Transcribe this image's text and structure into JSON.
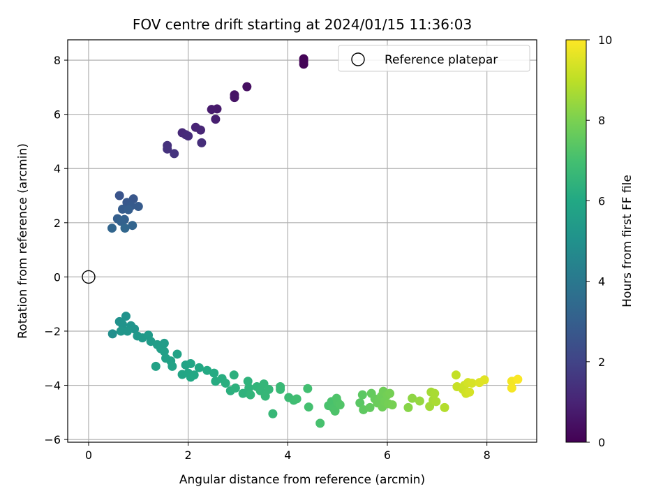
{
  "chart_data": {
    "type": "scatter",
    "title": "FOV centre drift starting at 2024/01/15 11:36:03",
    "xlabel": "Angular distance from reference (arcmin)",
    "ylabel": "Rotation from reference (arcmin)",
    "xlim": [
      -0.42,
      9.0
    ],
    "ylim": [
      -6.1,
      8.75
    ],
    "xticks": [
      0,
      2,
      4,
      6,
      8
    ],
    "yticks": [
      -6,
      -4,
      -2,
      0,
      2,
      4,
      6,
      8
    ],
    "grid": true,
    "legend": {
      "position": "top-right",
      "entries": [
        "Reference platepar"
      ]
    },
    "reference_point": {
      "x": 0,
      "y": 0,
      "marker": "open-circle",
      "label": "Reference platepar"
    },
    "colorbar": {
      "label": "Hours from first FF file",
      "colormap": "viridis",
      "min": 0,
      "max": 10,
      "ticks": [
        0,
        2,
        4,
        6,
        8,
        10
      ]
    },
    "points": [
      {
        "x": 4.32,
        "y": 8.05,
        "c": 0.05
      },
      {
        "x": 4.32,
        "y": 7.95,
        "c": 0.08
      },
      {
        "x": 4.32,
        "y": 7.85,
        "c": 0.1
      },
      {
        "x": 3.18,
        "y": 7.02,
        "c": 0.4
      },
      {
        "x": 2.93,
        "y": 6.72,
        "c": 0.5
      },
      {
        "x": 2.93,
        "y": 6.62,
        "c": 0.55
      },
      {
        "x": 2.58,
        "y": 6.2,
        "c": 0.7
      },
      {
        "x": 2.47,
        "y": 6.18,
        "c": 0.75
      },
      {
        "x": 2.55,
        "y": 5.82,
        "c": 0.85
      },
      {
        "x": 2.15,
        "y": 5.52,
        "c": 1.0
      },
      {
        "x": 2.25,
        "y": 5.42,
        "c": 1.05
      },
      {
        "x": 1.88,
        "y": 5.32,
        "c": 1.15
      },
      {
        "x": 1.95,
        "y": 5.25,
        "c": 1.2
      },
      {
        "x": 2.0,
        "y": 5.2,
        "c": 1.25
      },
      {
        "x": 2.27,
        "y": 4.95,
        "c": 1.3
      },
      {
        "x": 1.58,
        "y": 4.85,
        "c": 1.4
      },
      {
        "x": 1.58,
        "y": 4.72,
        "c": 1.45
      },
      {
        "x": 1.72,
        "y": 4.55,
        "c": 1.5
      },
      {
        "x": 0.62,
        "y": 3.0,
        "c": 2.6
      },
      {
        "x": 0.9,
        "y": 2.88,
        "c": 2.7
      },
      {
        "x": 0.77,
        "y": 2.75,
        "c": 2.75
      },
      {
        "x": 0.85,
        "y": 2.62,
        "c": 2.8
      },
      {
        "x": 1.0,
        "y": 2.6,
        "c": 2.85
      },
      {
        "x": 0.68,
        "y": 2.5,
        "c": 2.9
      },
      {
        "x": 0.8,
        "y": 2.48,
        "c": 2.95
      },
      {
        "x": 0.58,
        "y": 2.15,
        "c": 3.0
      },
      {
        "x": 0.72,
        "y": 2.12,
        "c": 3.05
      },
      {
        "x": 0.65,
        "y": 2.05,
        "c": 3.1
      },
      {
        "x": 0.88,
        "y": 1.9,
        "c": 3.2
      },
      {
        "x": 0.47,
        "y": 1.8,
        "c": 3.25
      },
      {
        "x": 0.73,
        "y": 1.8,
        "c": 3.3
      },
      {
        "x": 0.48,
        "y": -2.1,
        "c": 4.9
      },
      {
        "x": 0.62,
        "y": -1.65,
        "c": 5.0
      },
      {
        "x": 0.75,
        "y": -1.45,
        "c": 5.05
      },
      {
        "x": 0.68,
        "y": -1.75,
        "c": 5.1
      },
      {
        "x": 0.85,
        "y": -1.8,
        "c": 5.12
      },
      {
        "x": 0.92,
        "y": -1.92,
        "c": 5.15
      },
      {
        "x": 0.65,
        "y": -2.0,
        "c": 5.2
      },
      {
        "x": 0.78,
        "y": -2.0,
        "c": 5.22
      },
      {
        "x": 0.98,
        "y": -2.18,
        "c": 5.3
      },
      {
        "x": 1.08,
        "y": -2.25,
        "c": 5.35
      },
      {
        "x": 1.2,
        "y": -2.15,
        "c": 5.4
      },
      {
        "x": 1.25,
        "y": -2.38,
        "c": 5.45
      },
      {
        "x": 1.38,
        "y": -2.5,
        "c": 5.5
      },
      {
        "x": 1.45,
        "y": -2.65,
        "c": 5.55
      },
      {
        "x": 1.52,
        "y": -2.75,
        "c": 5.6
      },
      {
        "x": 1.55,
        "y": -3.0,
        "c": 5.65
      },
      {
        "x": 1.65,
        "y": -3.1,
        "c": 5.7
      },
      {
        "x": 1.68,
        "y": -3.3,
        "c": 5.72
      },
      {
        "x": 1.78,
        "y": -2.85,
        "c": 5.75
      },
      {
        "x": 1.35,
        "y": -3.3,
        "c": 5.7
      },
      {
        "x": 1.52,
        "y": -2.45,
        "c": 5.5
      },
      {
        "x": 1.95,
        "y": -3.25,
        "c": 5.8
      },
      {
        "x": 2.05,
        "y": -3.2,
        "c": 5.85
      },
      {
        "x": 1.88,
        "y": -3.6,
        "c": 5.88
      },
      {
        "x": 2.0,
        "y": -3.55,
        "c": 5.9
      },
      {
        "x": 2.05,
        "y": -3.7,
        "c": 5.95
      },
      {
        "x": 2.12,
        "y": -3.62,
        "c": 6.0
      },
      {
        "x": 2.22,
        "y": -3.35,
        "c": 6.0
      },
      {
        "x": 2.38,
        "y": -3.45,
        "c": 6.05
      },
      {
        "x": 2.52,
        "y": -3.55,
        "c": 6.1
      },
      {
        "x": 2.55,
        "y": -3.85,
        "c": 6.15
      },
      {
        "x": 2.68,
        "y": -3.75,
        "c": 6.2
      },
      {
        "x": 2.75,
        "y": -3.92,
        "c": 6.25
      },
      {
        "x": 2.85,
        "y": -4.2,
        "c": 6.3
      },
      {
        "x": 2.92,
        "y": -3.62,
        "c": 6.3
      },
      {
        "x": 2.95,
        "y": -4.1,
        "c": 6.35
      },
      {
        "x": 3.1,
        "y": -4.3,
        "c": 6.4
      },
      {
        "x": 3.2,
        "y": -3.85,
        "c": 6.42
      },
      {
        "x": 3.22,
        "y": -4.1,
        "c": 6.45
      },
      {
        "x": 3.25,
        "y": -4.35,
        "c": 6.5
      },
      {
        "x": 3.38,
        "y": -4.05,
        "c": 6.5
      },
      {
        "x": 3.45,
        "y": -4.2,
        "c": 6.55
      },
      {
        "x": 3.52,
        "y": -3.95,
        "c": 6.55
      },
      {
        "x": 3.55,
        "y": -4.4,
        "c": 6.6
      },
      {
        "x": 3.62,
        "y": -4.15,
        "c": 6.6
      },
      {
        "x": 3.7,
        "y": -5.05,
        "c": 6.65
      },
      {
        "x": 3.85,
        "y": -4.05,
        "c": 6.7
      },
      {
        "x": 3.85,
        "y": -4.15,
        "c": 6.72
      },
      {
        "x": 4.02,
        "y": -4.45,
        "c": 6.8
      },
      {
        "x": 4.12,
        "y": -4.55,
        "c": 6.85
      },
      {
        "x": 4.18,
        "y": -4.5,
        "c": 6.9
      },
      {
        "x": 4.4,
        "y": -4.12,
        "c": 6.95
      },
      {
        "x": 4.42,
        "y": -4.8,
        "c": 7.0
      },
      {
        "x": 4.65,
        "y": -5.4,
        "c": 7.05
      },
      {
        "x": 4.82,
        "y": -4.75,
        "c": 7.1
      },
      {
        "x": 4.88,
        "y": -4.6,
        "c": 7.12
      },
      {
        "x": 4.92,
        "y": -4.85,
        "c": 7.15
      },
      {
        "x": 4.95,
        "y": -4.95,
        "c": 7.18
      },
      {
        "x": 4.98,
        "y": -4.48,
        "c": 7.2
      },
      {
        "x": 5.0,
        "y": -4.62,
        "c": 7.22
      },
      {
        "x": 5.05,
        "y": -4.72,
        "c": 7.25
      },
      {
        "x": 5.45,
        "y": -4.65,
        "c": 7.4
      },
      {
        "x": 5.5,
        "y": -4.35,
        "c": 7.45
      },
      {
        "x": 5.52,
        "y": -4.9,
        "c": 7.5
      },
      {
        "x": 5.65,
        "y": -4.82,
        "c": 7.55
      },
      {
        "x": 5.68,
        "y": -4.3,
        "c": 7.6
      },
      {
        "x": 5.75,
        "y": -4.5,
        "c": 7.65
      },
      {
        "x": 5.8,
        "y": -4.65,
        "c": 7.7
      },
      {
        "x": 5.85,
        "y": -4.55,
        "c": 7.72
      },
      {
        "x": 5.88,
        "y": -4.4,
        "c": 7.75
      },
      {
        "x": 5.9,
        "y": -4.8,
        "c": 7.78
      },
      {
        "x": 5.92,
        "y": -4.22,
        "c": 7.8
      },
      {
        "x": 5.95,
        "y": -4.6,
        "c": 7.82
      },
      {
        "x": 6.0,
        "y": -4.35,
        "c": 7.85
      },
      {
        "x": 6.02,
        "y": -4.68,
        "c": 7.88
      },
      {
        "x": 6.05,
        "y": -4.3,
        "c": 7.9
      },
      {
        "x": 6.1,
        "y": -4.72,
        "c": 7.92
      },
      {
        "x": 6.42,
        "y": -4.82,
        "c": 8.2
      },
      {
        "x": 6.5,
        "y": -4.48,
        "c": 8.3
      },
      {
        "x": 6.65,
        "y": -4.58,
        "c": 8.4
      },
      {
        "x": 6.85,
        "y": -4.78,
        "c": 8.6
      },
      {
        "x": 6.88,
        "y": -4.25,
        "c": 8.62
      },
      {
        "x": 6.92,
        "y": -4.55,
        "c": 8.65
      },
      {
        "x": 6.95,
        "y": -4.3,
        "c": 8.7
      },
      {
        "x": 6.98,
        "y": -4.6,
        "c": 8.72
      },
      {
        "x": 7.15,
        "y": -4.82,
        "c": 8.85
      },
      {
        "x": 7.38,
        "y": -3.62,
        "c": 9.1
      },
      {
        "x": 7.4,
        "y": -4.05,
        "c": 9.15
      },
      {
        "x": 7.52,
        "y": -4.15,
        "c": 9.2
      },
      {
        "x": 7.55,
        "y": -4.0,
        "c": 9.25
      },
      {
        "x": 7.58,
        "y": -4.3,
        "c": 9.3
      },
      {
        "x": 7.62,
        "y": -3.9,
        "c": 9.35
      },
      {
        "x": 7.65,
        "y": -4.25,
        "c": 9.38
      },
      {
        "x": 7.7,
        "y": -3.92,
        "c": 9.4
      },
      {
        "x": 7.85,
        "y": -3.9,
        "c": 9.5
      },
      {
        "x": 7.95,
        "y": -3.8,
        "c": 9.55
      },
      {
        "x": 8.5,
        "y": -3.85,
        "c": 9.85
      },
      {
        "x": 8.5,
        "y": -4.1,
        "c": 9.88
      },
      {
        "x": 8.62,
        "y": -3.78,
        "c": 9.95
      }
    ]
  }
}
